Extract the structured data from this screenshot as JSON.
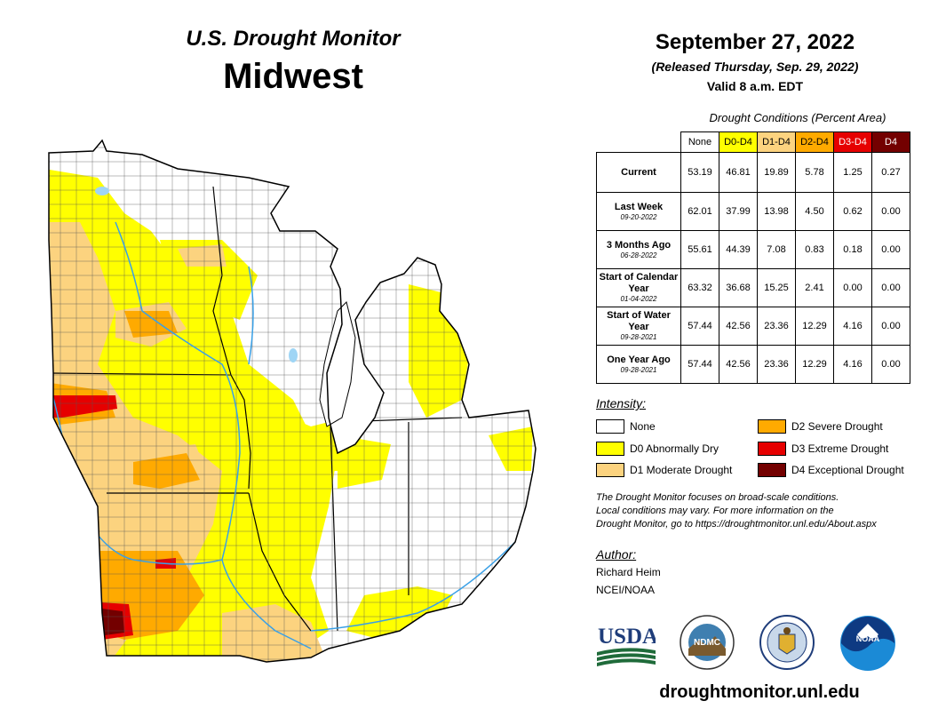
{
  "header": {
    "subtitle": "U.S. Drought Monitor",
    "region": "Midwest",
    "date": "September 27, 2022",
    "released": "(Released Thursday, Sep. 29, 2022)",
    "valid": "Valid 8 a.m. EDT"
  },
  "table": {
    "caption": "Drought Conditions (Percent Area)",
    "columns": [
      {
        "label": "None",
        "color": "#ffffff"
      },
      {
        "label": "D0-D4",
        "color": "#ffff00"
      },
      {
        "label": "D1-D4",
        "color": "#fcd37f"
      },
      {
        "label": "D2-D4",
        "color": "#ffaa00"
      },
      {
        "label": "D3-D4",
        "color": "#e60000"
      },
      {
        "label": "D4",
        "color": "#730000"
      }
    ],
    "rows": [
      {
        "label": "Current",
        "date": "",
        "values": [
          "53.19",
          "46.81",
          "19.89",
          "5.78",
          "1.25",
          "0.27"
        ]
      },
      {
        "label": "Last Week",
        "date": "09-20-2022",
        "values": [
          "62.01",
          "37.99",
          "13.98",
          "4.50",
          "0.62",
          "0.00"
        ]
      },
      {
        "label": "3 Months Ago",
        "date": "06-28-2022",
        "values": [
          "55.61",
          "44.39",
          "7.08",
          "0.83",
          "0.18",
          "0.00"
        ]
      },
      {
        "label": "Start of Calendar Year",
        "date": "01-04-2022",
        "values": [
          "63.32",
          "36.68",
          "15.25",
          "2.41",
          "0.00",
          "0.00"
        ]
      },
      {
        "label": "Start of Water Year",
        "date": "09-28-2021",
        "values": [
          "57.44",
          "42.56",
          "23.36",
          "12.29",
          "4.16",
          "0.00"
        ]
      },
      {
        "label": "One Year Ago",
        "date": "09-28-2021",
        "values": [
          "57.44",
          "42.56",
          "23.36",
          "12.29",
          "4.16",
          "0.00"
        ]
      }
    ]
  },
  "legend": {
    "title": "Intensity:",
    "items": [
      {
        "label": "None",
        "color": "#ffffff"
      },
      {
        "label": "D0 Abnormally Dry",
        "color": "#ffff00"
      },
      {
        "label": "D1 Moderate Drought",
        "color": "#fcd37f"
      },
      {
        "label": "D2 Severe Drought",
        "color": "#ffaa00"
      },
      {
        "label": "D3 Extreme Drought",
        "color": "#e60000"
      },
      {
        "label": "D4 Exceptional Drought",
        "color": "#730000"
      }
    ]
  },
  "note": {
    "line1": "The Drought Monitor focuses on broad-scale conditions.",
    "line2": "Local conditions may vary. For more information on the",
    "line3": "Drought Monitor, go to https://droughtmonitor.unl.edu/About.aspx"
  },
  "author": {
    "title": "Author:",
    "name": "Richard Heim",
    "org": "NCEI/NOAA"
  },
  "logos": {
    "usda": "USDA",
    "ndmc": "NDMC",
    "noaa": "NOAA"
  },
  "footer": {
    "url": "droughtmonitor.unl.edu"
  },
  "map": {
    "colors": {
      "none": "#ffffff",
      "d0": "#ffff00",
      "d1": "#fcd37f",
      "d2": "#ffaa00",
      "d3": "#e60000",
      "d4": "#730000",
      "water": "#9fd5f5",
      "river": "#3aa0e6"
    }
  }
}
